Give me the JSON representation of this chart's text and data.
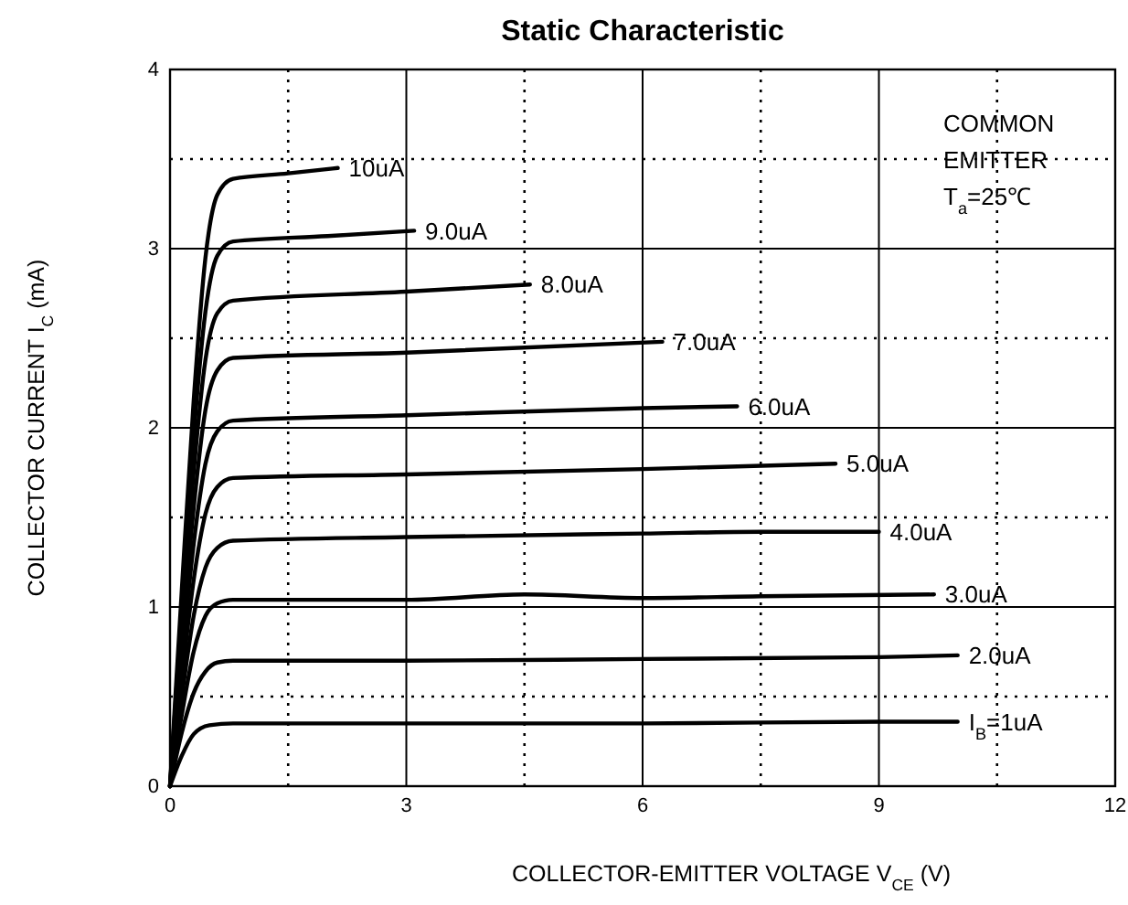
{
  "chart_data": {
    "type": "line",
    "title": "Static Characteristic",
    "xlabel": "COLLECTOR-EMITTER VOLTAGE   V$_{CE}$   (V)",
    "ylabel": "COLLECTOR CURRENT   I$_{C}$   (mA)",
    "annotations": [
      "COMMON",
      "EMITTER",
      "T$_{a}$=25℃"
    ],
    "xlim": [
      0,
      12
    ],
    "ylim": [
      0,
      4
    ],
    "xticks": [
      0,
      {
        "value": 1.5,
        "label": null
      },
      3,
      {
        "value": 4.5,
        "label": null
      },
      6,
      {
        "value": 7.5,
        "label": null
      },
      9,
      {
        "value": 10.5,
        "label": null
      },
      12
    ],
    "yticks": [
      0,
      {
        "value": 0.5,
        "label": null
      },
      1,
      {
        "value": 1.5,
        "label": null
      },
      2,
      {
        "value": 2.5,
        "label": null
      },
      3,
      {
        "value": 3.5,
        "label": null
      },
      4
    ],
    "grid": true,
    "legend": false,
    "marker": "none",
    "line_style": "solid",
    "series": [
      {
        "name": "I$_{B}$=1uA",
        "color": "#000000",
        "x": [
          0,
          0.15,
          0.3,
          0.5,
          0.8,
          3,
          6,
          9,
          10
        ],
        "values": [
          0,
          0.17,
          0.29,
          0.34,
          0.35,
          0.35,
          0.35,
          0.36,
          0.36
        ]
      },
      {
        "name": "2.0uA",
        "color": "#000000",
        "x": [
          0,
          0.15,
          0.3,
          0.45,
          0.6,
          0.8,
          3,
          6,
          9,
          10
        ],
        "values": [
          0,
          0.3,
          0.52,
          0.64,
          0.69,
          0.7,
          0.7,
          0.71,
          0.72,
          0.73
        ]
      },
      {
        "name": "3.0uA",
        "color": "#000000",
        "x": [
          0,
          0.15,
          0.3,
          0.45,
          0.6,
          0.8,
          3,
          4.5,
          6,
          7.5,
          9.7
        ],
        "values": [
          0,
          0.4,
          0.75,
          0.95,
          1.02,
          1.04,
          1.04,
          1.07,
          1.05,
          1.06,
          1.07
        ]
      },
      {
        "name": "4.0uA",
        "color": "#000000",
        "x": [
          0,
          0.15,
          0.3,
          0.45,
          0.6,
          0.8,
          3,
          6,
          7.5,
          9
        ],
        "values": [
          0,
          0.5,
          0.95,
          1.22,
          1.33,
          1.37,
          1.39,
          1.41,
          1.42,
          1.42
        ]
      },
      {
        "name": "5.0uA",
        "color": "#000000",
        "x": [
          0,
          0.15,
          0.3,
          0.45,
          0.6,
          0.8,
          3,
          6,
          8.45
        ],
        "values": [
          0,
          0.6,
          1.15,
          1.52,
          1.67,
          1.72,
          1.74,
          1.77,
          1.8
        ]
      },
      {
        "name": "6.0uA",
        "color": "#000000",
        "x": [
          0,
          0.15,
          0.3,
          0.45,
          0.6,
          0.8,
          3,
          6,
          7.2
        ],
        "values": [
          0,
          0.7,
          1.35,
          1.8,
          1.98,
          2.04,
          2.07,
          2.11,
          2.12
        ]
      },
      {
        "name": "7.0uA",
        "color": "#000000",
        "x": [
          0,
          0.15,
          0.3,
          0.45,
          0.6,
          0.8,
          3,
          6.25
        ],
        "values": [
          0,
          0.8,
          1.55,
          2.1,
          2.32,
          2.39,
          2.42,
          2.48
        ]
      },
      {
        "name": "8.0uA",
        "color": "#000000",
        "x": [
          0,
          0.15,
          0.3,
          0.45,
          0.6,
          0.8,
          3,
          4.57
        ],
        "values": [
          0,
          0.9,
          1.75,
          2.38,
          2.64,
          2.71,
          2.76,
          2.8
        ]
      },
      {
        "name": "9.0uA",
        "color": "#000000",
        "x": [
          0,
          0.15,
          0.3,
          0.45,
          0.6,
          0.8,
          2,
          3.1
        ],
        "values": [
          0,
          1.0,
          1.95,
          2.65,
          2.96,
          3.04,
          3.07,
          3.1
        ]
      },
      {
        "name": "10uA",
        "color": "#000000",
        "x": [
          0,
          0.15,
          0.3,
          0.45,
          0.6,
          0.8,
          1.5,
          2.13
        ],
        "values": [
          0,
          1.1,
          2.15,
          2.95,
          3.3,
          3.39,
          3.42,
          3.45
        ]
      }
    ]
  }
}
